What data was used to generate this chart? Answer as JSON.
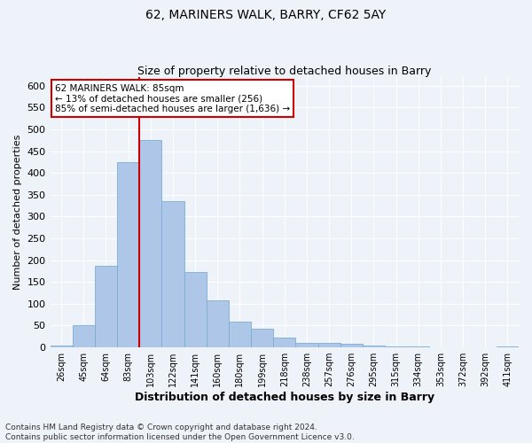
{
  "title1": "62, MARINERS WALK, BARRY, CF62 5AY",
  "title2": "Size of property relative to detached houses in Barry",
  "xlabel": "Distribution of detached houses by size in Barry",
  "ylabel": "Number of detached properties",
  "categories": [
    "26sqm",
    "45sqm",
    "64sqm",
    "83sqm",
    "103sqm",
    "122sqm",
    "141sqm",
    "160sqm",
    "180sqm",
    "199sqm",
    "218sqm",
    "238sqm",
    "257sqm",
    "276sqm",
    "295sqm",
    "315sqm",
    "334sqm",
    "353sqm",
    "372sqm",
    "392sqm",
    "411sqm"
  ],
  "values": [
    5,
    50,
    188,
    425,
    475,
    335,
    173,
    107,
    60,
    43,
    22,
    10,
    10,
    8,
    5,
    3,
    2,
    1,
    1,
    0,
    2
  ],
  "bar_color": "#aec6e8",
  "bar_edge_color": "#7aafd4",
  "vline_index": 3,
  "vline_color": "#cc0000",
  "annotation_text": "62 MARINERS WALK: 85sqm\n← 13% of detached houses are smaller (256)\n85% of semi-detached houses are larger (1,636) →",
  "annotation_box_color": "#ffffff",
  "annotation_box_edge": "#cc0000",
  "ylim": [
    0,
    620
  ],
  "yticks": [
    0,
    50,
    100,
    150,
    200,
    250,
    300,
    350,
    400,
    450,
    500,
    550,
    600
  ],
  "footnote1": "Contains HM Land Registry data © Crown copyright and database right 2024.",
  "footnote2": "Contains public sector information licensed under the Open Government Licence v3.0.",
  "background_color": "#eef2f9",
  "grid_color": "#ffffff",
  "title1_fontsize": 10,
  "title2_fontsize": 9,
  "xlabel_fontsize": 9,
  "ylabel_fontsize": 8,
  "tick_fontsize": 8,
  "xtick_fontsize": 7,
  "footnote_fontsize": 6.5
}
